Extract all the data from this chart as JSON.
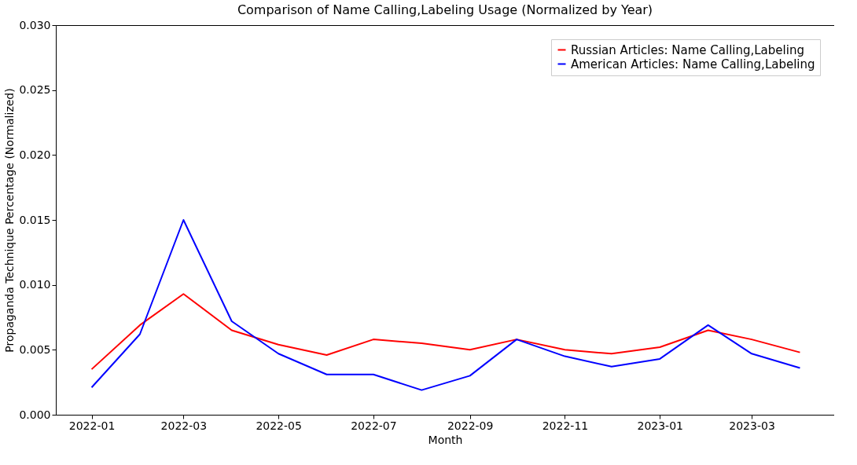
{
  "chart_data": {
    "type": "line",
    "title": "Comparison of Name Calling,Labeling Usage (Normalized by Year)",
    "xlabel": "Month",
    "ylabel": "Propaganda Technique Percentage (Normalized)",
    "x": [
      "2022-01",
      "2022-02",
      "2022-03",
      "2022-04",
      "2022-05",
      "2022-06",
      "2022-07",
      "2022-08",
      "2022-09",
      "2022-10",
      "2022-11",
      "2022-12",
      "2023-01",
      "2023-02",
      "2023-03",
      "2023-04"
    ],
    "series": [
      {
        "name": "Russian Articles: Name Calling,Labeling",
        "color": "#ff0000",
        "values": [
          0.0035,
          0.0069,
          0.0093,
          0.0065,
          0.0054,
          0.0046,
          0.0058,
          0.0055,
          0.005,
          0.0058,
          0.005,
          0.0047,
          0.0052,
          0.0065,
          0.0058,
          0.0048
        ]
      },
      {
        "name": "American Articles: Name Calling,Labeling",
        "color": "#0000ff",
        "values": [
          0.0021,
          0.0062,
          0.015,
          0.0072,
          0.0047,
          0.0031,
          0.0031,
          0.0019,
          0.003,
          0.0058,
          0.0045,
          0.0037,
          0.0043,
          0.0069,
          0.0047,
          0.0036
        ]
      }
    ],
    "xlim": [
      "2021-12-09",
      "2023-04-23"
    ],
    "xticks": [
      "2022-01",
      "2022-03",
      "2022-05",
      "2022-07",
      "2022-09",
      "2022-11",
      "2023-01",
      "2023-03"
    ],
    "ylim": [
      0,
      0.03
    ],
    "yticks": [
      {
        "value": 0,
        "label": "0.000"
      },
      {
        "value": 0.005,
        "label": "0.005"
      },
      {
        "value": 0.01,
        "label": "0.010"
      },
      {
        "value": 0.015,
        "label": "0.015"
      },
      {
        "value": 0.02,
        "label": "0.020"
      },
      {
        "value": 0.025,
        "label": "0.025"
      },
      {
        "value": 0.03,
        "label": "0.030"
      }
    ],
    "legend": "top right",
    "grid": false,
    "marker": "none",
    "line_style": "solid"
  }
}
